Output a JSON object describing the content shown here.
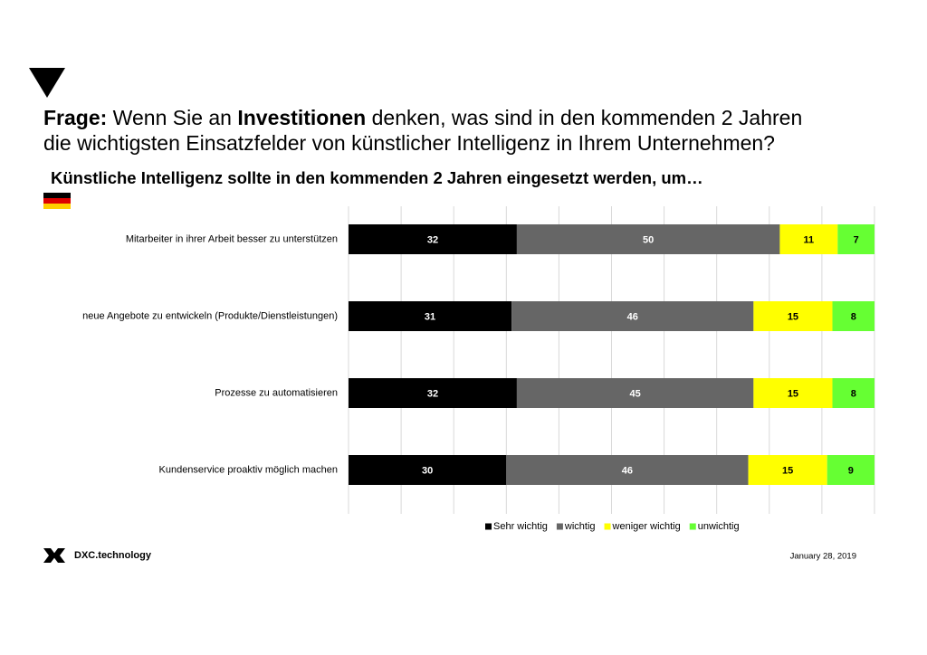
{
  "question": [
    [
      {
        "text": "Frage:",
        "bold": true
      },
      {
        "text": " Wenn Sie an ",
        "bold": false
      },
      {
        "text": "Investitionen",
        "bold": true
      },
      {
        "text": " denken, was sind in den kommenden 2 Jahren",
        "bold": false
      }
    ],
    [
      {
        "text": "die wichtigsten Einsatzfelder von künstlicher Intelligenz in Ihrem Unternehmen?",
        "bold": false
      }
    ]
  ],
  "chart_data": {
    "type": "stacked-bar-horizontal",
    "title": "Künstliche Intelligenz sollte in den kommenden 2 Jahren eingesetzt werden, um…",
    "categories": [
      "Mitarbeiter in ihrer Arbeit besser zu unterstützen",
      "neue Angebote zu entwickeln (Produkte/Dienstleistungen)",
      "Prozesse zu automatisieren",
      "Kundenservice proaktiv möglich machen"
    ],
    "series": [
      {
        "name": "Sehr wichtig",
        "color": "#000000",
        "label_color": "#ffffff",
        "values": [
          32,
          31,
          32,
          30
        ]
      },
      {
        "name": "wichtig",
        "color": "#666666",
        "label_color": "#ffffff",
        "values": [
          50,
          46,
          45,
          46
        ]
      },
      {
        "name": "weniger wichtig",
        "color": "#ffff00",
        "label_color": "#000000",
        "values": [
          11,
          15,
          15,
          15
        ]
      },
      {
        "name": "unwichtig",
        "color": "#66ff33",
        "label_color": "#000000",
        "values": [
          7,
          8,
          8,
          9
        ]
      }
    ],
    "xlim": [
      0,
      100
    ],
    "xticks": [
      0,
      10,
      20,
      30,
      40,
      50,
      60,
      70,
      80,
      90,
      100
    ],
    "grid": true,
    "legend": "bottom"
  },
  "footer": {
    "brand": "DXC.technology",
    "date": "January 28, 2019"
  }
}
